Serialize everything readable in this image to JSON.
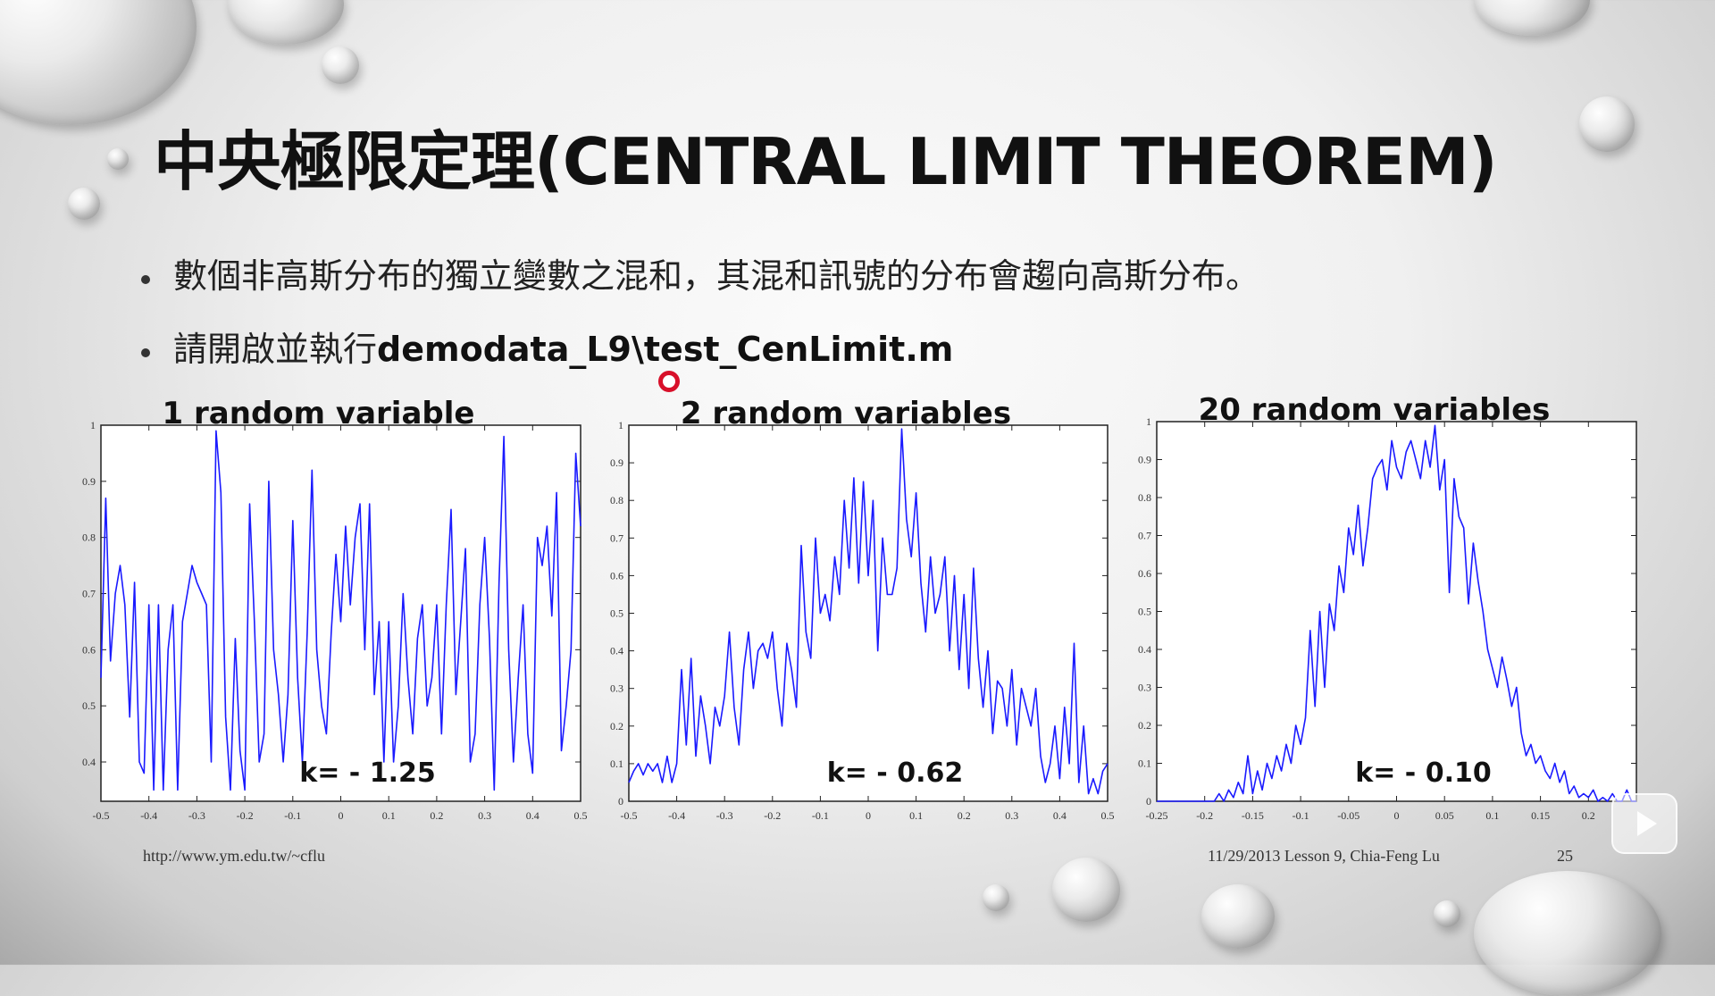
{
  "slide": {
    "title": "中央極限定理(CENTRAL LIMIT THEOREM)",
    "bullets": [
      {
        "text": "數個非高斯分布的獨立變數之混和，其混和訊號的分布會趨向高斯分布。"
      },
      {
        "prefix": "請開啟並執行",
        "code": "demodata_L9\\test_CenLimit.m"
      }
    ],
    "footer": {
      "url": "http://www.ym.edu.tw/~cflu",
      "date_author": "11/29/2013 Lesson 9, Chia-Feng Lu",
      "page": "25"
    }
  },
  "chart_data": [
    {
      "type": "line",
      "title": "1 random variable",
      "annotation": "k= - 1.25",
      "line_color": "#1a1aff",
      "xlim": [
        -0.5,
        0.5
      ],
      "ylim": [
        0.33,
        1.0
      ],
      "xticks": [
        "-0.5",
        "-0.4",
        "-0.3",
        "-0.2",
        "-0.1",
        "0",
        "0.1",
        "0.2",
        "0.3",
        "0.4",
        "0.5"
      ],
      "xtick_values": [
        -0.5,
        -0.4,
        -0.3,
        -0.2,
        -0.1,
        0,
        0.1,
        0.2,
        0.3,
        0.4,
        0.5
      ],
      "yticks": [
        "0.4",
        "0.5",
        "0.6",
        "0.7",
        "0.8",
        "0.9",
        "1"
      ],
      "ytick_values": [
        0.4,
        0.5,
        0.6,
        0.7,
        0.8,
        0.9,
        1.0
      ],
      "x": [
        -0.5,
        -0.49,
        -0.48,
        -0.47,
        -0.46,
        -0.45,
        -0.44,
        -0.43,
        -0.42,
        -0.41,
        -0.4,
        -0.39,
        -0.38,
        -0.37,
        -0.36,
        -0.35,
        -0.34,
        -0.33,
        -0.32,
        -0.31,
        -0.3,
        -0.29,
        -0.28,
        -0.27,
        -0.26,
        -0.25,
        -0.24,
        -0.23,
        -0.22,
        -0.21,
        -0.2,
        -0.19,
        -0.18,
        -0.17,
        -0.16,
        -0.15,
        -0.14,
        -0.13,
        -0.12,
        -0.11,
        -0.1,
        -0.09,
        -0.08,
        -0.07,
        -0.06,
        -0.05,
        -0.04,
        -0.03,
        -0.02,
        -0.01,
        0,
        0.01,
        0.02,
        0.03,
        0.04,
        0.05,
        0.06,
        0.07,
        0.08,
        0.09,
        0.1,
        0.11,
        0.12,
        0.13,
        0.14,
        0.15,
        0.16,
        0.17,
        0.18,
        0.19,
        0.2,
        0.21,
        0.22,
        0.23,
        0.24,
        0.25,
        0.26,
        0.27,
        0.28,
        0.29,
        0.3,
        0.31,
        0.32,
        0.33,
        0.34,
        0.35,
        0.36,
        0.37,
        0.38,
        0.39,
        0.4,
        0.41,
        0.42,
        0.43,
        0.44,
        0.45,
        0.46,
        0.47,
        0.48,
        0.49,
        0.5
      ],
      "y": [
        0.55,
        0.87,
        0.58,
        0.7,
        0.75,
        0.68,
        0.48,
        0.72,
        0.4,
        0.38,
        0.68,
        0.35,
        0.68,
        0.35,
        0.6,
        0.68,
        0.35,
        0.65,
        0.7,
        0.75,
        0.72,
        0.7,
        0.68,
        0.4,
        0.99,
        0.88,
        0.48,
        0.35,
        0.62,
        0.42,
        0.35,
        0.86,
        0.65,
        0.4,
        0.45,
        0.9,
        0.6,
        0.52,
        0.4,
        0.52,
        0.83,
        0.55,
        0.4,
        0.63,
        0.92,
        0.6,
        0.5,
        0.45,
        0.63,
        0.77,
        0.65,
        0.82,
        0.68,
        0.8,
        0.86,
        0.6,
        0.86,
        0.52,
        0.65,
        0.4,
        0.65,
        0.4,
        0.5,
        0.7,
        0.55,
        0.45,
        0.62,
        0.68,
        0.5,
        0.55,
        0.68,
        0.45,
        0.68,
        0.85,
        0.52,
        0.65,
        0.78,
        0.4,
        0.45,
        0.68,
        0.8,
        0.62,
        0.35,
        0.72,
        0.98,
        0.6,
        0.4,
        0.55,
        0.68,
        0.45,
        0.38,
        0.8,
        0.75,
        0.82,
        0.66,
        0.88,
        0.42,
        0.5,
        0.6,
        0.95,
        0.82
      ]
    },
    {
      "type": "line",
      "title": "2 random variables",
      "annotation": "k= - 0.62",
      "line_color": "#1a1aff",
      "xlim": [
        -0.5,
        0.5
      ],
      "ylim": [
        0,
        1.0
      ],
      "xticks": [
        "-0.5",
        "-0.4",
        "-0.3",
        "-0.2",
        "-0.1",
        "0",
        "0.1",
        "0.2",
        "0.3",
        "0.4",
        "0.5"
      ],
      "xtick_values": [
        -0.5,
        -0.4,
        -0.3,
        -0.2,
        -0.1,
        0,
        0.1,
        0.2,
        0.3,
        0.4,
        0.5
      ],
      "yticks": [
        "0",
        "0.1",
        "0.2",
        "0.3",
        "0.4",
        "0.5",
        "0.6",
        "0.7",
        "0.8",
        "0.9",
        "1"
      ],
      "ytick_values": [
        0,
        0.1,
        0.2,
        0.3,
        0.4,
        0.5,
        0.6,
        0.7,
        0.8,
        0.9,
        1.0
      ],
      "x": [
        -0.5,
        -0.49,
        -0.48,
        -0.47,
        -0.46,
        -0.45,
        -0.44,
        -0.43,
        -0.42,
        -0.41,
        -0.4,
        -0.39,
        -0.38,
        -0.37,
        -0.36,
        -0.35,
        -0.34,
        -0.33,
        -0.32,
        -0.31,
        -0.3,
        -0.29,
        -0.28,
        -0.27,
        -0.26,
        -0.25,
        -0.24,
        -0.23,
        -0.22,
        -0.21,
        -0.2,
        -0.19,
        -0.18,
        -0.17,
        -0.16,
        -0.15,
        -0.14,
        -0.13,
        -0.12,
        -0.11,
        -0.1,
        -0.09,
        -0.08,
        -0.07,
        -0.06,
        -0.05,
        -0.04,
        -0.03,
        -0.02,
        -0.01,
        0,
        0.01,
        0.02,
        0.03,
        0.04,
        0.05,
        0.06,
        0.07,
        0.08,
        0.09,
        0.1,
        0.11,
        0.12,
        0.13,
        0.14,
        0.15,
        0.16,
        0.17,
        0.18,
        0.19,
        0.2,
        0.21,
        0.22,
        0.23,
        0.24,
        0.25,
        0.26,
        0.27,
        0.28,
        0.29,
        0.3,
        0.31,
        0.32,
        0.33,
        0.34,
        0.35,
        0.36,
        0.37,
        0.38,
        0.39,
        0.4,
        0.41,
        0.42,
        0.43,
        0.44,
        0.45,
        0.46,
        0.47,
        0.48,
        0.49,
        0.5
      ],
      "y": [
        0.05,
        0.08,
        0.1,
        0.07,
        0.1,
        0.08,
        0.1,
        0.05,
        0.12,
        0.05,
        0.1,
        0.35,
        0.15,
        0.38,
        0.12,
        0.28,
        0.2,
        0.1,
        0.25,
        0.2,
        0.28,
        0.45,
        0.25,
        0.15,
        0.35,
        0.45,
        0.3,
        0.4,
        0.42,
        0.38,
        0.45,
        0.3,
        0.2,
        0.42,
        0.35,
        0.25,
        0.68,
        0.45,
        0.38,
        0.7,
        0.5,
        0.55,
        0.48,
        0.65,
        0.55,
        0.8,
        0.62,
        0.86,
        0.58,
        0.85,
        0.6,
        0.8,
        0.4,
        0.7,
        0.55,
        0.55,
        0.62,
        0.99,
        0.75,
        0.65,
        0.82,
        0.58,
        0.45,
        0.65,
        0.5,
        0.55,
        0.65,
        0.4,
        0.6,
        0.35,
        0.55,
        0.3,
        0.62,
        0.38,
        0.25,
        0.4,
        0.18,
        0.32,
        0.3,
        0.2,
        0.35,
        0.15,
        0.3,
        0.25,
        0.2,
        0.3,
        0.12,
        0.05,
        0.1,
        0.2,
        0.06,
        0.25,
        0.1,
        0.42,
        0.05,
        0.2,
        0.02,
        0.06,
        0.02,
        0.08,
        0.1
      ]
    },
    {
      "type": "line",
      "title": "20 random variables",
      "annotation": "k= - 0.10",
      "line_color": "#1a1aff",
      "xlim": [
        -0.25,
        0.25
      ],
      "ylim": [
        0,
        1.0
      ],
      "xticks": [
        "-0.25",
        "-0.2",
        "-0.15",
        "-0.1",
        "-0.05",
        "0",
        "0.05",
        "0.1",
        "0.15",
        "0.2"
      ],
      "xtick_values": [
        -0.25,
        -0.2,
        -0.15,
        -0.1,
        -0.05,
        0,
        0.05,
        0.1,
        0.15,
        0.2
      ],
      "yticks": [
        "0",
        "0.1",
        "0.2",
        "0.3",
        "0.4",
        "0.5",
        "0.6",
        "0.7",
        "0.8",
        "0.9",
        "1"
      ],
      "ytick_values": [
        0,
        0.1,
        0.2,
        0.3,
        0.4,
        0.5,
        0.6,
        0.7,
        0.8,
        0.9,
        1.0
      ],
      "x": [
        -0.25,
        -0.245,
        -0.24,
        -0.235,
        -0.23,
        -0.225,
        -0.22,
        -0.215,
        -0.21,
        -0.205,
        -0.2,
        -0.195,
        -0.19,
        -0.185,
        -0.18,
        -0.175,
        -0.17,
        -0.165,
        -0.16,
        -0.155,
        -0.15,
        -0.145,
        -0.14,
        -0.135,
        -0.13,
        -0.125,
        -0.12,
        -0.115,
        -0.11,
        -0.105,
        -0.1,
        -0.095,
        -0.09,
        -0.085,
        -0.08,
        -0.075,
        -0.07,
        -0.065,
        -0.06,
        -0.055,
        -0.05,
        -0.045,
        -0.04,
        -0.035,
        -0.03,
        -0.025,
        -0.02,
        -0.015,
        -0.01,
        -0.005,
        0,
        0.005,
        0.01,
        0.015,
        0.02,
        0.025,
        0.03,
        0.035,
        0.04,
        0.045,
        0.05,
        0.055,
        0.06,
        0.065,
        0.07,
        0.075,
        0.08,
        0.085,
        0.09,
        0.095,
        0.1,
        0.105,
        0.11,
        0.115,
        0.12,
        0.125,
        0.13,
        0.135,
        0.14,
        0.145,
        0.15,
        0.155,
        0.16,
        0.165,
        0.17,
        0.175,
        0.18,
        0.185,
        0.19,
        0.195,
        0.2,
        0.205,
        0.21,
        0.215,
        0.22,
        0.225,
        0.23,
        0.235,
        0.24,
        0.245,
        0.25
      ],
      "y": [
        0,
        0,
        0,
        0,
        0,
        0,
        0,
        0,
        0,
        0,
        0,
        0,
        0,
        0.02,
        0,
        0.03,
        0.01,
        0.05,
        0.02,
        0.12,
        0.02,
        0.08,
        0.03,
        0.1,
        0.06,
        0.12,
        0.08,
        0.15,
        0.1,
        0.2,
        0.15,
        0.22,
        0.45,
        0.25,
        0.5,
        0.3,
        0.52,
        0.45,
        0.62,
        0.55,
        0.72,
        0.65,
        0.78,
        0.62,
        0.72,
        0.85,
        0.88,
        0.9,
        0.82,
        0.95,
        0.88,
        0.85,
        0.92,
        0.95,
        0.9,
        0.85,
        0.95,
        0.88,
        0.99,
        0.82,
        0.9,
        0.55,
        0.85,
        0.75,
        0.72,
        0.52,
        0.68,
        0.58,
        0.5,
        0.4,
        0.35,
        0.3,
        0.38,
        0.32,
        0.25,
        0.3,
        0.18,
        0.12,
        0.15,
        0.1,
        0.12,
        0.08,
        0.06,
        0.1,
        0.05,
        0.08,
        0.02,
        0.04,
        0.01,
        0.02,
        0.01,
        0.03,
        0,
        0.01,
        0,
        0.02,
        0,
        0,
        0.03,
        0,
        0
      ]
    }
  ]
}
